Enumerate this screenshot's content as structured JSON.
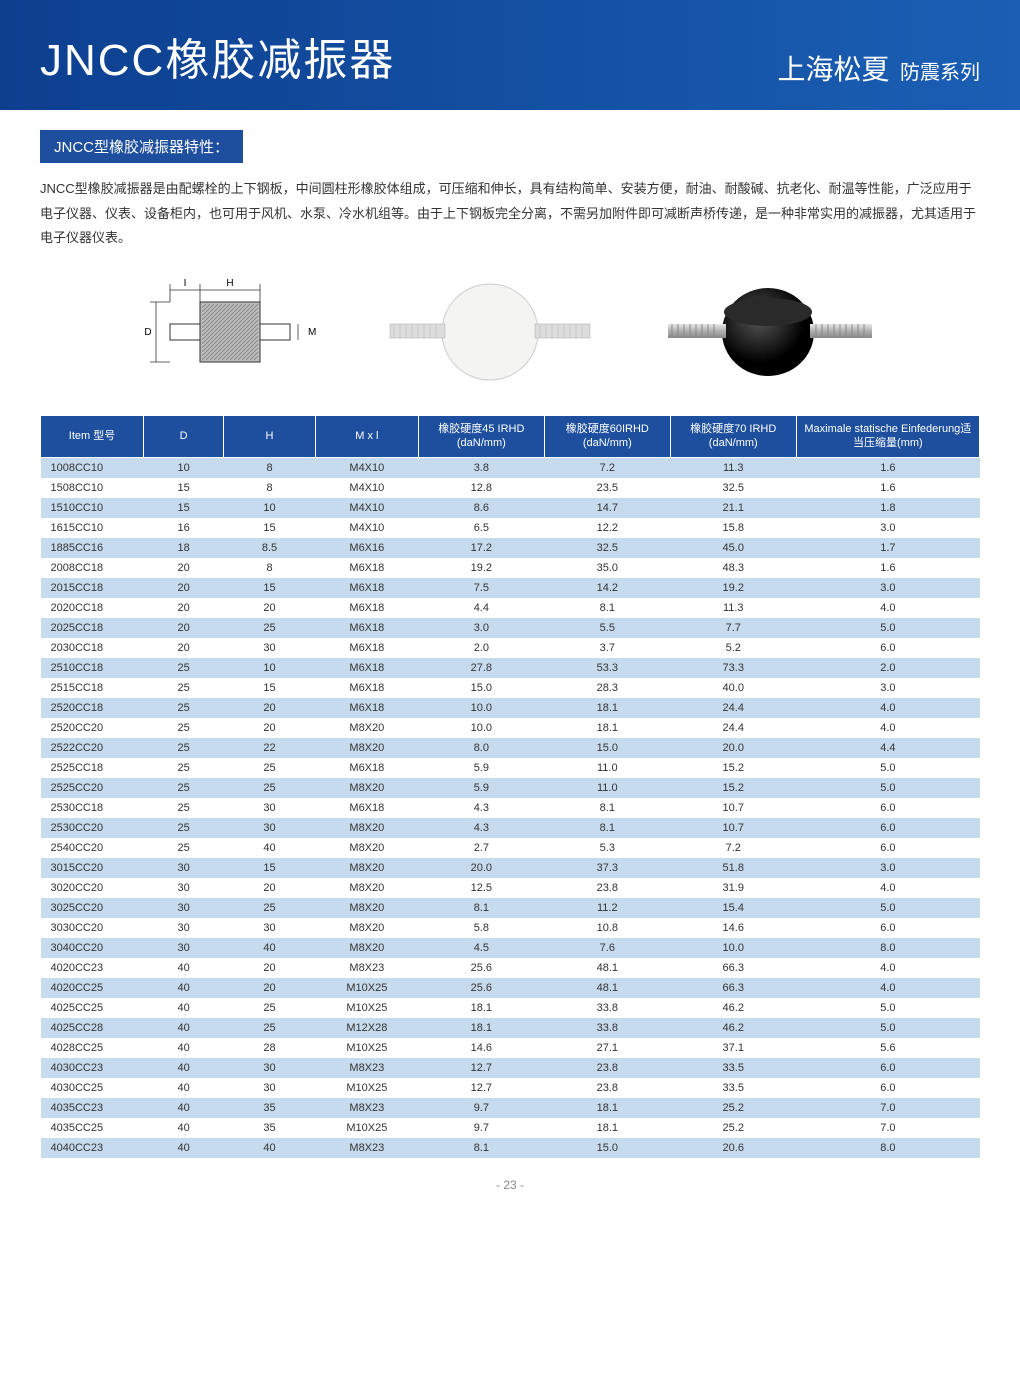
{
  "header": {
    "title": "JNCC橡胶减振器",
    "brand": "上海松夏",
    "brand_sub": "防震系列"
  },
  "section_title": "JNCC型橡胶减振器特性：",
  "description": "JNCC型橡胶减振器是由配螺栓的上下钢板，中间圆柱形橡胶体组成，可压缩和伸长，具有结构简单、安装方便，耐油、耐酸碱、抗老化、耐温等性能，广泛应用于电子仪器、仪表、设备柜内，也可用于风机、水泵、冷水机组等。由于上下钢板完全分离，不需另加附件即可减断声桥传递，是一种非常实用的减振器，尤其适用于电子仪器仪表。",
  "table": {
    "columns": [
      "Item 型号",
      "D",
      "H",
      "M x l",
      "橡胶硬度45 IRHD (daN/mm)",
      "橡胶硬度60IRHD (daN/mm)",
      "橡胶硬度70 IRHD (daN/mm)",
      "Maximale statische Einfederung适当压缩量(mm)"
    ],
    "column_widths": [
      "90",
      "70",
      "80",
      "90",
      "110",
      "110",
      "110",
      "160"
    ],
    "rows": [
      [
        "1008CC10",
        "10",
        "8",
        "M4X10",
        "3.8",
        "7.2",
        "11.3",
        "1.6"
      ],
      [
        "1508CC10",
        "15",
        "8",
        "M4X10",
        "12.8",
        "23.5",
        "32.5",
        "1.6"
      ],
      [
        "1510CC10",
        "15",
        "10",
        "M4X10",
        "8.6",
        "14.7",
        "21.1",
        "1.8"
      ],
      [
        "1615CC10",
        "16",
        "15",
        "M4X10",
        "6.5",
        "12.2",
        "15.8",
        "3.0"
      ],
      [
        "1885CC16",
        "18",
        "8.5",
        "M6X16",
        "17.2",
        "32.5",
        "45.0",
        "1.7"
      ],
      [
        "2008CC18",
        "20",
        "8",
        "M6X18",
        "19.2",
        "35.0",
        "48.3",
        "1.6"
      ],
      [
        "2015CC18",
        "20",
        "15",
        "M6X18",
        "7.5",
        "14.2",
        "19.2",
        "3.0"
      ],
      [
        "2020CC18",
        "20",
        "20",
        "M6X18",
        "4.4",
        "8.1",
        "11.3",
        "4.0"
      ],
      [
        "2025CC18",
        "20",
        "25",
        "M6X18",
        "3.0",
        "5.5",
        "7.7",
        "5.0"
      ],
      [
        "2030CC18",
        "20",
        "30",
        "M6X18",
        "2.0",
        "3.7",
        "5.2",
        "6.0"
      ],
      [
        "2510CC18",
        "25",
        "10",
        "M6X18",
        "27.8",
        "53.3",
        "73.3",
        "2.0"
      ],
      [
        "2515CC18",
        "25",
        "15",
        "M6X18",
        "15.0",
        "28.3",
        "40.0",
        "3.0"
      ],
      [
        "2520CC18",
        "25",
        "20",
        "M6X18",
        "10.0",
        "18.1",
        "24.4",
        "4.0"
      ],
      [
        "2520CC20",
        "25",
        "20",
        "M8X20",
        "10.0",
        "18.1",
        "24.4",
        "4.0"
      ],
      [
        "2522CC20",
        "25",
        "22",
        "M8X20",
        "8.0",
        "15.0",
        "20.0",
        "4.4"
      ],
      [
        "2525CC18",
        "25",
        "25",
        "M6X18",
        "5.9",
        "11.0",
        "15.2",
        "5.0"
      ],
      [
        "2525CC20",
        "25",
        "25",
        "M8X20",
        "5.9",
        "11.0",
        "15.2",
        "5.0"
      ],
      [
        "2530CC18",
        "25",
        "30",
        "M6X18",
        "4.3",
        "8.1",
        "10.7",
        "6.0"
      ],
      [
        "2530CC20",
        "25",
        "30",
        "M8X20",
        "4.3",
        "8.1",
        "10.7",
        "6.0"
      ],
      [
        "2540CC20",
        "25",
        "40",
        "M8X20",
        "2.7",
        "5.3",
        "7.2",
        "6.0"
      ],
      [
        "3015CC20",
        "30",
        "15",
        "M8X20",
        "20.0",
        "37.3",
        "51.8",
        "3.0"
      ],
      [
        "3020CC20",
        "30",
        "20",
        "M8X20",
        "12.5",
        "23.8",
        "31.9",
        "4.0"
      ],
      [
        "3025CC20",
        "30",
        "25",
        "M8X20",
        "8.1",
        "11.2",
        "15.4",
        "5.0"
      ],
      [
        "3030CC20",
        "30",
        "30",
        "M8X20",
        "5.8",
        "10.8",
        "14.6",
        "6.0"
      ],
      [
        "3040CC20",
        "30",
        "40",
        "M8X20",
        "4.5",
        "7.6",
        "10.0",
        "8.0"
      ],
      [
        "4020CC23",
        "40",
        "20",
        "M8X23",
        "25.6",
        "48.1",
        "66.3",
        "4.0"
      ],
      [
        "4020CC25",
        "40",
        "20",
        "M10X25",
        "25.6",
        "48.1",
        "66.3",
        "4.0"
      ],
      [
        "4025CC25",
        "40",
        "25",
        "M10X25",
        "18.1",
        "33.8",
        "46.2",
        "5.0"
      ],
      [
        "4025CC28",
        "40",
        "25",
        "M12X28",
        "18.1",
        "33.8",
        "46.2",
        "5.0"
      ],
      [
        "4028CC25",
        "40",
        "28",
        "M10X25",
        "14.6",
        "27.1",
        "37.1",
        "5.6"
      ],
      [
        "4030CC23",
        "40",
        "30",
        "M8X23",
        "12.7",
        "23.8",
        "33.5",
        "6.0"
      ],
      [
        "4030CC25",
        "40",
        "30",
        "M10X25",
        "12.7",
        "23.8",
        "33.5",
        "6.0"
      ],
      [
        "4035CC23",
        "40",
        "35",
        "M8X23",
        "9.7",
        "18.1",
        "25.2",
        "7.0"
      ],
      [
        "4035CC25",
        "40",
        "35",
        "M10X25",
        "9.7",
        "18.1",
        "25.2",
        "7.0"
      ],
      [
        "4040CC23",
        "40",
        "40",
        "M8X23",
        "8.1",
        "15.0",
        "20.6",
        "8.0"
      ]
    ],
    "header_bg": "#1d4f9e",
    "alt_row_bg": "#c7dbef"
  },
  "page_number": "- 23 -",
  "diagrams": {
    "labels": {
      "I": "I",
      "H": "H",
      "D": "D",
      "M": "M"
    }
  }
}
